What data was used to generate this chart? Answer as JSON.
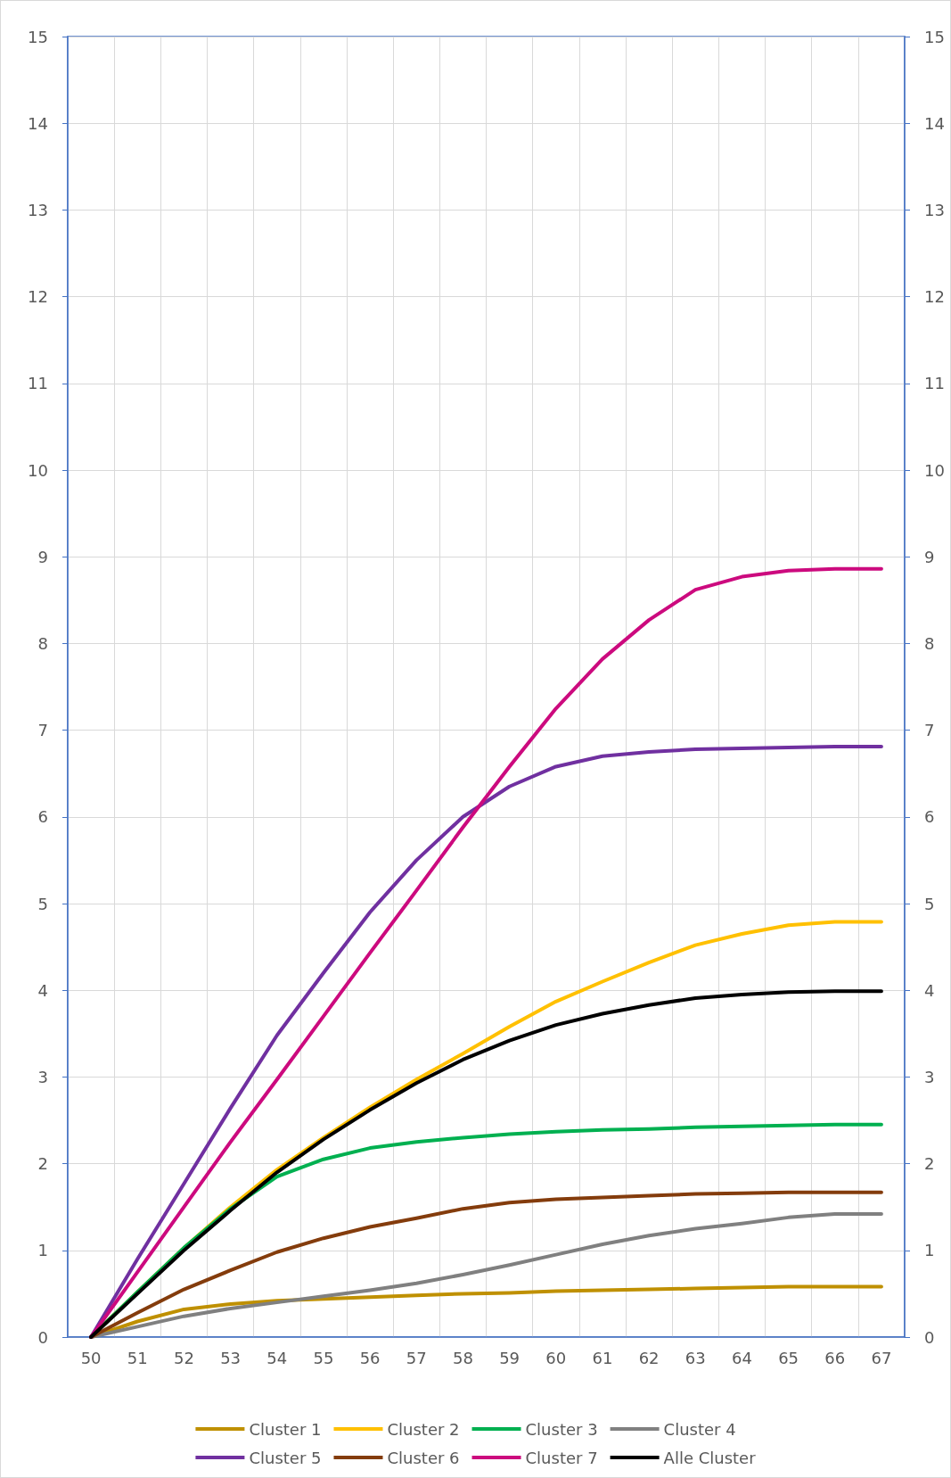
{
  "chart_data": {
    "type": "line",
    "categories": [
      "50",
      "51",
      "52",
      "53",
      "54",
      "55",
      "56",
      "57",
      "58",
      "59",
      "60",
      "61",
      "62",
      "63",
      "64",
      "65",
      "66",
      "67"
    ],
    "ylim": [
      0,
      15
    ],
    "yticks": [
      0,
      1,
      2,
      3,
      4,
      5,
      6,
      7,
      8,
      9,
      10,
      11,
      12,
      13,
      14,
      15
    ],
    "y2lim": [
      0,
      15
    ],
    "y2ticks": [
      0,
      1,
      2,
      3,
      4,
      5,
      6,
      7,
      8,
      9,
      10,
      11,
      12,
      13,
      14,
      15
    ],
    "grid": true,
    "legend": "bottom",
    "marker": "none",
    "line_style": "solid",
    "series": [
      {
        "name": "Cluster 1",
        "color": "#bf9000",
        "values": [
          0,
          0.18,
          0.32,
          0.38,
          0.42,
          0.44,
          0.46,
          0.48,
          0.5,
          0.51,
          0.53,
          0.54,
          0.55,
          0.56,
          0.57,
          0.58,
          0.58,
          0.58
        ]
      },
      {
        "name": "Cluster 2",
        "color": "#ffc000",
        "values": [
          0,
          0.52,
          1.03,
          1.5,
          1.93,
          2.3,
          2.65,
          2.97,
          3.27,
          3.58,
          3.87,
          4.1,
          4.32,
          4.52,
          4.65,
          4.75,
          4.79,
          4.79
        ]
      },
      {
        "name": "Cluster 3",
        "color": "#00b050",
        "values": [
          0,
          0.52,
          1.03,
          1.48,
          1.85,
          2.05,
          2.18,
          2.25,
          2.3,
          2.34,
          2.37,
          2.39,
          2.4,
          2.42,
          2.43,
          2.44,
          2.45,
          2.45
        ]
      },
      {
        "name": "Cluster 4",
        "color": "#808080",
        "values": [
          0,
          0.12,
          0.24,
          0.33,
          0.4,
          0.47,
          0.54,
          0.62,
          0.72,
          0.83,
          0.95,
          1.07,
          1.17,
          1.25,
          1.31,
          1.38,
          1.42,
          1.42
        ]
      },
      {
        "name": "Cluster 5",
        "color": "#7030a0",
        "values": [
          0,
          0.9,
          1.77,
          2.64,
          3.48,
          4.2,
          4.9,
          5.5,
          6.0,
          6.35,
          6.58,
          6.7,
          6.75,
          6.78,
          6.79,
          6.8,
          6.81,
          6.81
        ]
      },
      {
        "name": "Cluster 6",
        "color": "#843c0c",
        "values": [
          0,
          0.28,
          0.55,
          0.77,
          0.98,
          1.14,
          1.27,
          1.37,
          1.48,
          1.55,
          1.59,
          1.61,
          1.63,
          1.65,
          1.66,
          1.67,
          1.67,
          1.67
        ]
      },
      {
        "name": "Cluster 7",
        "color": "#cc0a7e",
        "values": [
          0,
          0.75,
          1.5,
          2.25,
          2.97,
          3.7,
          4.43,
          5.15,
          5.88,
          6.58,
          7.25,
          7.82,
          8.27,
          8.62,
          8.77,
          8.84,
          8.86,
          8.86
        ]
      },
      {
        "name": "Alle Cluster",
        "color": "#000000",
        "values": [
          0,
          0.5,
          1.0,
          1.46,
          1.9,
          2.28,
          2.62,
          2.93,
          3.2,
          3.42,
          3.6,
          3.73,
          3.83,
          3.91,
          3.95,
          3.98,
          3.99,
          3.99
        ]
      }
    ]
  }
}
